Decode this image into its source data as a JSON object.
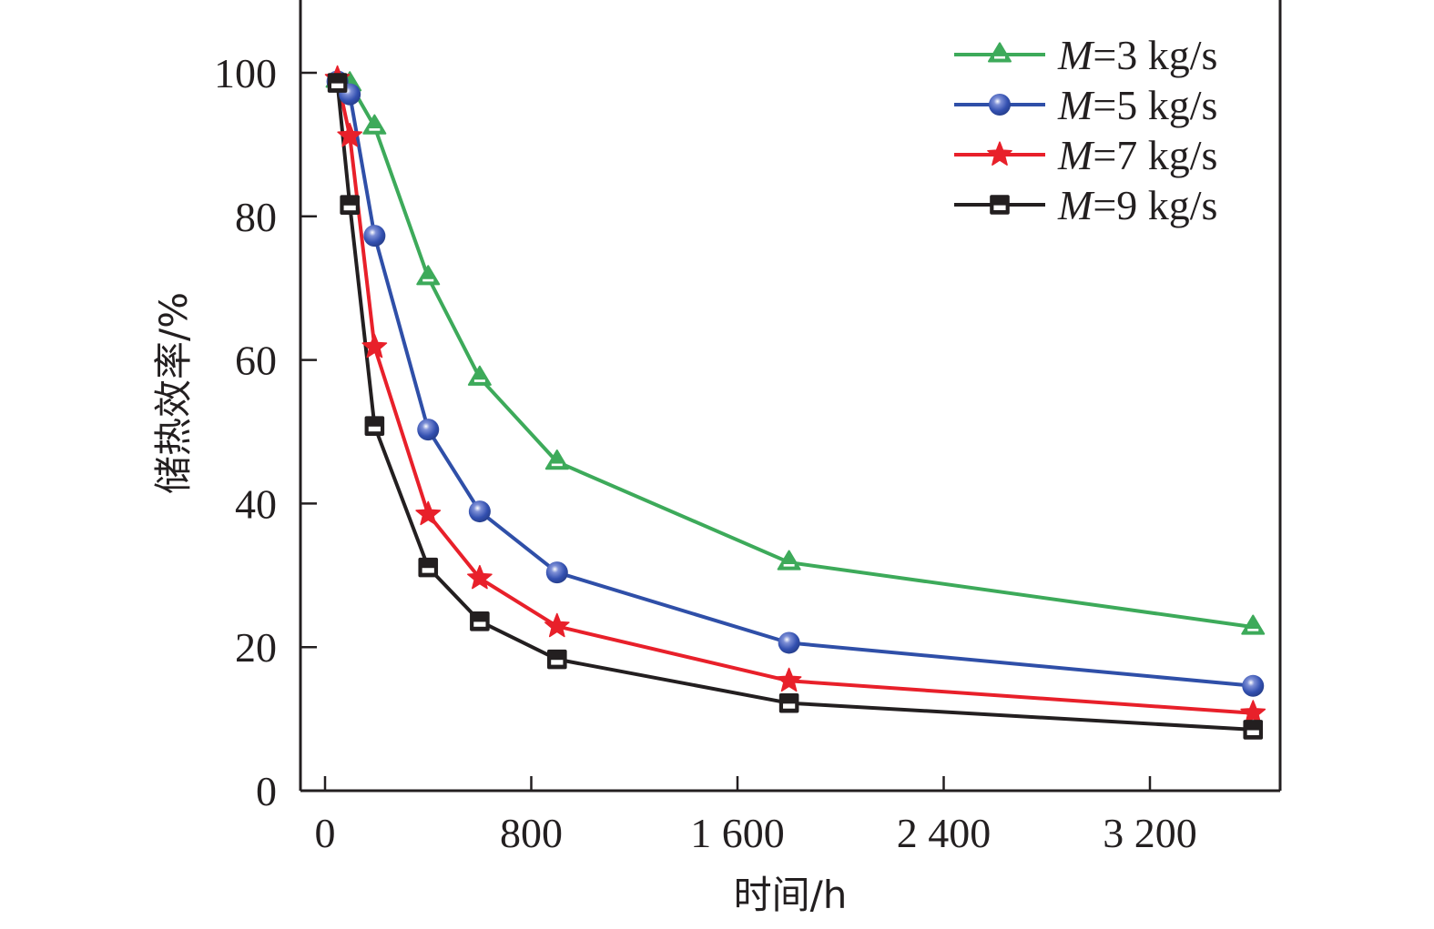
{
  "chart_data": {
    "type": "line",
    "title": "",
    "xlabel": "时间/h",
    "ylabel": "储热效率/%",
    "xlim": [
      -80,
      3780
    ],
    "ylim": [
      0,
      110
    ],
    "xticks": [
      0,
      800,
      1600,
      2400,
      3200
    ],
    "xtick_labels": [
      "0",
      "800",
      "1 600",
      "2 400",
      "3 200"
    ],
    "yticks": [
      0,
      20,
      40,
      60,
      80,
      100
    ],
    "ytick_labels": [
      "0",
      "20",
      "40",
      "60",
      "80",
      "100"
    ],
    "grid": false,
    "legend_position": "top-right",
    "x": [
      48,
      96,
      192,
      400,
      600,
      900,
      1800,
      3600
    ],
    "series": [
      {
        "name": "M=3 kg/s",
        "italic_prefix": "M",
        "suffix": "=3 kg/s",
        "color": "#3daa5a",
        "marker": "triangle",
        "values": [
          99.0,
          98.5,
          92.5,
          71.5,
          57.5,
          45.8,
          31.8,
          22.8
        ]
      },
      {
        "name": "M=5 kg/s",
        "italic_prefix": "M",
        "suffix": "=5 kg/s",
        "color": "#2f4fa8",
        "marker": "circle",
        "values": [
          98.8,
          97.0,
          77.3,
          50.3,
          38.9,
          30.4,
          20.6,
          14.6
        ]
      },
      {
        "name": "M=7 kg/s",
        "italic_prefix": "M",
        "suffix": "=7 kg/s",
        "color": "#e8202a",
        "marker": "star",
        "values": [
          99.2,
          91.2,
          61.8,
          38.5,
          29.6,
          22.9,
          15.3,
          10.8
        ]
      },
      {
        "name": "M=9 kg/s",
        "italic_prefix": "M",
        "suffix": "=9 kg/s",
        "color": "#231f20",
        "marker": "square",
        "values": [
          98.6,
          81.6,
          50.8,
          31.1,
          23.6,
          18.3,
          12.2,
          8.5
        ]
      }
    ]
  }
}
